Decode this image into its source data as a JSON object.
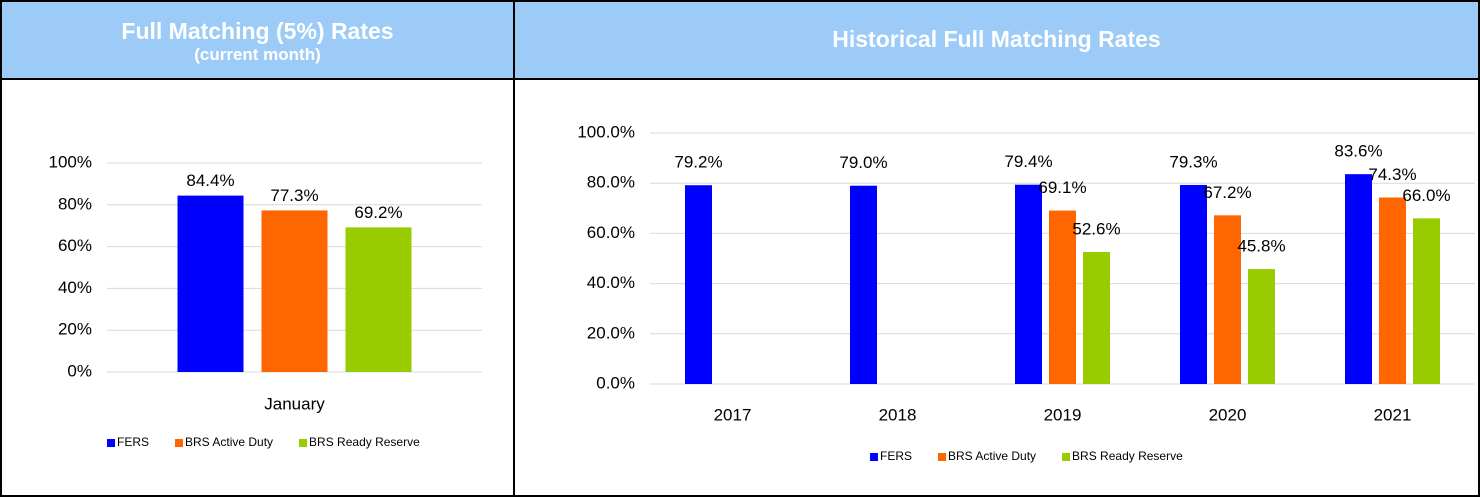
{
  "chart_data": [
    {
      "type": "bar",
      "title": "Full Matching (5%) Rates",
      "subtitle": "(current month)",
      "categories": [
        "January"
      ],
      "series": [
        {
          "name": "FERS",
          "color": "#0000ff",
          "values": [
            84.4
          ],
          "value_labels": [
            "84.4%"
          ]
        },
        {
          "name": "BRS Active Duty",
          "color": "#ff6600",
          "values": [
            77.3
          ],
          "value_labels": [
            "77.3%"
          ]
        },
        {
          "name": "BRS Ready Reserve",
          "color": "#99cc00",
          "values": [
            69.2
          ],
          "value_labels": [
            "69.2%"
          ]
        }
      ],
      "ylim": [
        0,
        100
      ],
      "yticks": [
        {
          "value": 0,
          "label": "0%"
        },
        {
          "value": 20,
          "label": "20%"
        },
        {
          "value": 40,
          "label": "40%"
        },
        {
          "value": 60,
          "label": "60%"
        },
        {
          "value": 80,
          "label": "80%"
        },
        {
          "value": 100,
          "label": "100%"
        }
      ],
      "grid": true,
      "legend": "bottom"
    },
    {
      "type": "bar",
      "title": "Historical Full Matching Rates",
      "categories": [
        "2017",
        "2018",
        "2019",
        "2020",
        "2021"
      ],
      "series": [
        {
          "name": "FERS",
          "color": "#0000ff",
          "values": [
            79.2,
            79.0,
            79.4,
            79.3,
            83.6
          ],
          "value_labels": [
            "79.2%",
            "79.0%",
            "79.4%",
            "79.3%",
            "83.6%"
          ]
        },
        {
          "name": "BRS Active Duty",
          "color": "#ff6600",
          "values": [
            null,
            null,
            69.1,
            67.2,
            74.3
          ],
          "value_labels": [
            null,
            null,
            "69.1%",
            "67.2%",
            "74.3%"
          ]
        },
        {
          "name": "BRS Ready Reserve",
          "color": "#99cc00",
          "values": [
            null,
            null,
            52.6,
            45.8,
            66.0
          ],
          "value_labels": [
            null,
            null,
            "52.6%",
            "45.8%",
            "66.0%"
          ]
        }
      ],
      "ylim": [
        0,
        100
      ],
      "yticks": [
        {
          "value": 0,
          "label": "0.0%"
        },
        {
          "value": 20,
          "label": "20.0%"
        },
        {
          "value": 40,
          "label": "40.0%"
        },
        {
          "value": 60,
          "label": "60.0%"
        },
        {
          "value": 80,
          "label": "80.0%"
        },
        {
          "value": 100,
          "label": "100.0%"
        }
      ],
      "grid": true,
      "legend": "bottom"
    }
  ]
}
